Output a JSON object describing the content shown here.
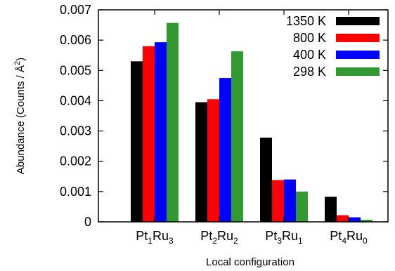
{
  "chart_data": {
    "type": "bar",
    "xlabel": "Local configuration",
    "ylabel": "Abundance (Counts / Å",
    "ylabel_sup": "2",
    "ylabel_end": ")",
    "ylim": [
      0,
      0.007
    ],
    "yticks": [
      "0",
      "0.001",
      "0.002",
      "0.003",
      "0.004",
      "0.005",
      "0.006",
      "0.007"
    ],
    "categories": [
      {
        "parts": [
          {
            "t": "Pt"
          },
          {
            "t": "1",
            "sub": true
          },
          {
            "t": "Ru"
          },
          {
            "t": "3",
            "sub": true
          }
        ]
      },
      {
        "parts": [
          {
            "t": "Pt"
          },
          {
            "t": "2",
            "sub": true
          },
          {
            "t": "Ru"
          },
          {
            "t": "2",
            "sub": true
          }
        ]
      },
      {
        "parts": [
          {
            "t": "Pt"
          },
          {
            "t": "3",
            "sub": true
          },
          {
            "t": "Ru"
          },
          {
            "t": "1",
            "sub": true
          }
        ]
      },
      {
        "parts": [
          {
            "t": "Pt"
          },
          {
            "t": "4",
            "sub": true
          },
          {
            "t": "Ru"
          },
          {
            "t": "0",
            "sub": true
          }
        ]
      }
    ],
    "series": [
      {
        "name": "1350 K",
        "color": "#000000",
        "values": [
          0.0053,
          0.00395,
          0.00278,
          0.00083
        ]
      },
      {
        "name": "800 K",
        "color": "#ff0000",
        "values": [
          0.0058,
          0.00405,
          0.00138,
          0.00022
        ]
      },
      {
        "name": "400 K",
        "color": "#0000ff",
        "values": [
          0.00593,
          0.00475,
          0.0014,
          0.00015
        ]
      },
      {
        "name": "298 K",
        "color": "#339933",
        "values": [
          0.00657,
          0.00563,
          0.001,
          7e-05
        ]
      }
    ],
    "legend_position": "top-right",
    "grid": false
  }
}
